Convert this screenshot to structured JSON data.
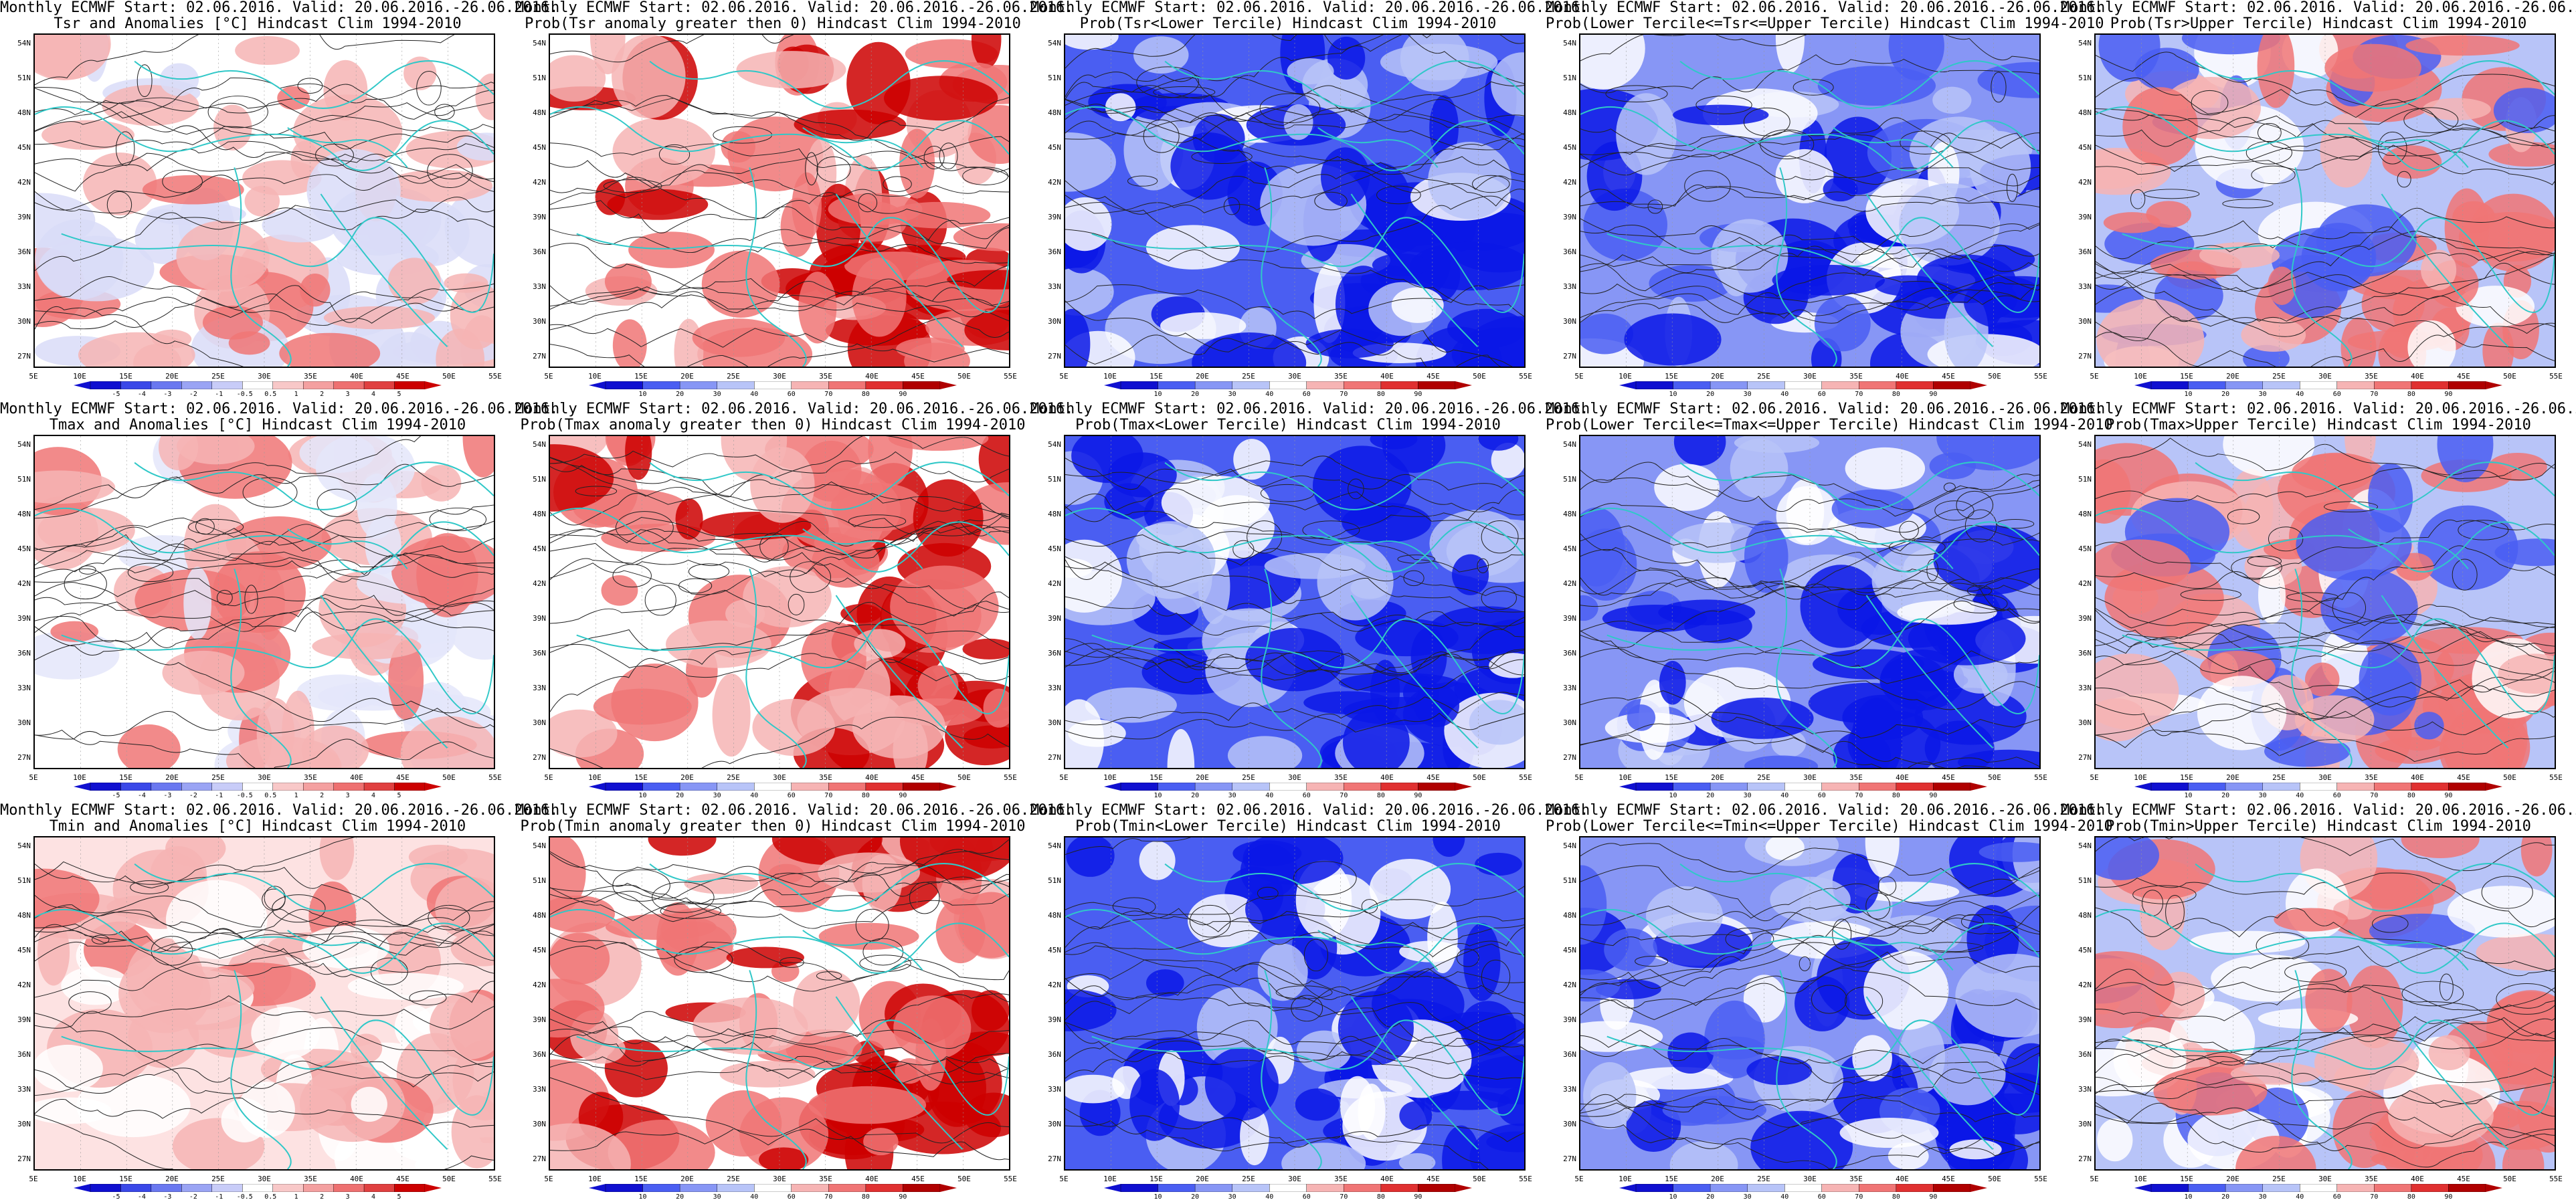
{
  "header_prefix": "Monthly ECMWF Start: 02.06.2016. Valid: 20.06.2016.-26.06.2016.",
  "lat_labels": [
    "54N",
    "51N",
    "48N",
    "45N",
    "42N",
    "39N",
    "36N",
    "33N",
    "30N",
    "27N"
  ],
  "lon_labels": [
    "5E",
    "10E",
    "15E",
    "20E",
    "25E",
    "30E",
    "35E",
    "40E",
    "45E",
    "50E",
    "55E"
  ],
  "anomaly_colorbar": [
    "-5",
    "-4",
    "-3",
    "-2",
    "-1",
    "-0.5",
    "0.5",
    "1",
    "2",
    "3",
    "4",
    "5"
  ],
  "prob_colorbar": [
    "10",
    "20",
    "30",
    "40",
    "60",
    "70",
    "80",
    "90"
  ],
  "colors": {
    "red_strong": "#cc0000",
    "red_mid": "#f07575",
    "red_light": "#f6b4b4",
    "blue_strong": "#0a18e6",
    "blue_mid": "#4a5ef2",
    "blue_light": "#b8c4f8",
    "coast": "#30c8c8",
    "contour": "#222222"
  },
  "panels": [
    {
      "id": "tsr-anom",
      "title2": "Tsr and Anomalies [°C] Hindcast Clim 1994-2010",
      "palette": "anom_tsr",
      "cbar": "anomaly"
    },
    {
      "id": "tsr-pgt0",
      "title2": "Prob(Tsr anomaly greater then 0) Hindcast Clim 1994-2010",
      "palette": "prob_red",
      "cbar": "prob"
    },
    {
      "id": "tsr-low",
      "title2": "Prob(Tsr<Lower Tercile) Hindcast Clim 1994-2010",
      "palette": "prob_blue",
      "cbar": "prob"
    },
    {
      "id": "tsr-mid",
      "title2": "Prob(Lower Tercile<=Tsr<=Upper Tercile) Hindcast Clim 1994-2010",
      "palette": "prob_mix_blue",
      "cbar": "prob"
    },
    {
      "id": "tsr-up",
      "title2": "Prob(Tsr>Upper Tercile) Hindcast Clim 1994-2010",
      "palette": "prob_mix_red",
      "cbar": "prob"
    },
    {
      "id": "tmax-anom",
      "title2": "Tmax and Anomalies [°C] Hindcast Clim 1994-2010",
      "palette": "anom_tmax",
      "cbar": "anomaly"
    },
    {
      "id": "tmax-pgt0",
      "title2": "Prob(Tmax anomaly greater then 0) Hindcast Clim 1994-2010",
      "palette": "prob_red",
      "cbar": "prob"
    },
    {
      "id": "tmax-low",
      "title2": "Prob(Tmax<Lower Tercile) Hindcast Clim 1994-2010",
      "palette": "prob_blue",
      "cbar": "prob"
    },
    {
      "id": "tmax-mid",
      "title2": "Prob(Lower Tercile<=Tmax<=Upper Tercile) Hindcast Clim 1994-2010",
      "palette": "prob_mix_blue",
      "cbar": "prob"
    },
    {
      "id": "tmax-up",
      "title2": "Prob(Tmax>Upper Tercile) Hindcast Clim 1994-2010",
      "palette": "prob_mix_red",
      "cbar": "prob"
    },
    {
      "id": "tmin-anom",
      "title2": "Tmin and Anomalies [°C] Hindcast Clim 1994-2010",
      "palette": "anom_tmin",
      "cbar": "anomaly"
    },
    {
      "id": "tmin-pgt0",
      "title2": "Prob(Tmin anomaly greater then 0) Hindcast Clim 1994-2010",
      "palette": "prob_red",
      "cbar": "prob"
    },
    {
      "id": "tmin-low",
      "title2": "Prob(Tmin<Lower Tercile) Hindcast Clim 1994-2010",
      "palette": "prob_blue",
      "cbar": "prob"
    },
    {
      "id": "tmin-mid",
      "title2": "Prob(Lower Tercile<=Tmin<=Upper Tercile) Hindcast Clim 1994-2010",
      "palette": "prob_mix_blue",
      "cbar": "prob"
    },
    {
      "id": "tmin-up",
      "title2": "Prob(Tmin>Upper Tercile) Hindcast Clim 1994-2010",
      "palette": "prob_mix_red",
      "cbar": "prob"
    }
  ]
}
